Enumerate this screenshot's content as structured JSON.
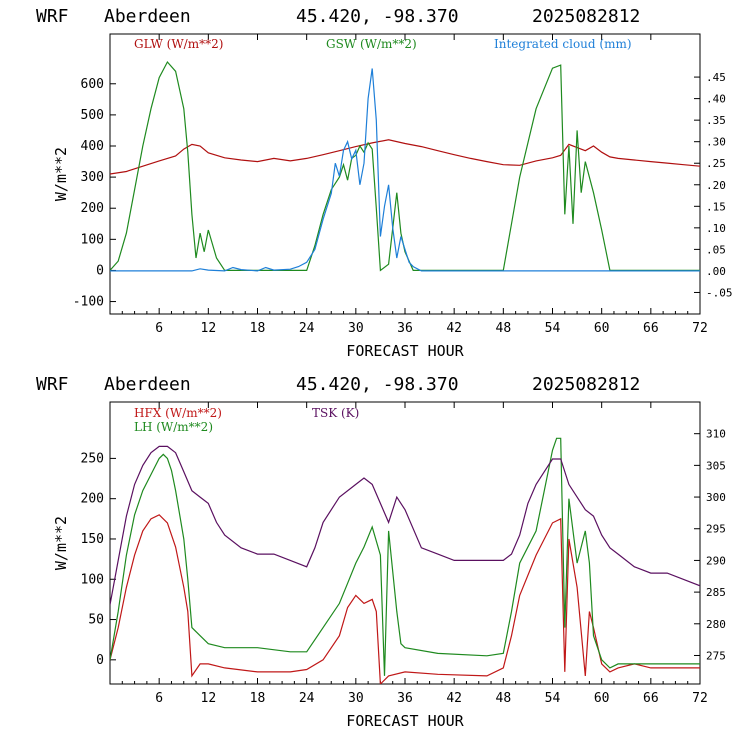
{
  "chart_data": [
    {
      "type": "line",
      "header": {
        "model": "WRF",
        "station": "Aberdeen",
        "coords": "45.420, -98.370",
        "run": "2025082812"
      },
      "xlabel": "FORECAST HOUR",
      "ylabel": "W/m**2",
      "xlim": [
        0,
        72
      ],
      "ylim": [
        -140,
        760
      ],
      "yticks": [
        -100,
        0,
        100,
        200,
        300,
        400,
        500,
        600
      ],
      "xticks": [
        6,
        12,
        18,
        24,
        30,
        36,
        42,
        48,
        54,
        60,
        66,
        72
      ],
      "y2lim": [
        -0.1,
        0.55
      ],
      "y2ticks": [
        -0.05,
        0.0,
        0.05,
        0.1,
        0.15,
        0.2,
        0.25,
        0.3,
        0.35,
        0.4,
        0.45
      ],
      "y2tick_labels": [
        "-.05",
        ".00",
        ".05",
        ".10",
        ".15",
        ".20",
        ".25",
        ".30",
        ".35",
        ".40",
        ".45"
      ],
      "colors": {
        "GLW": "#b01010",
        "GSW": "#1f8a1f",
        "cloud": "#1e7fd8"
      },
      "series": [
        {
          "name": "GLW (W/m**2)",
          "color": "#b01010",
          "axis": "left",
          "x": [
            0,
            2,
            4,
            6,
            8,
            9,
            10,
            11,
            12,
            14,
            16,
            18,
            20,
            22,
            24,
            26,
            28,
            30,
            32,
            34,
            36,
            38,
            40,
            42,
            44,
            46,
            48,
            50,
            52,
            54,
            55,
            56,
            57,
            58,
            59,
            60,
            61,
            62,
            64,
            66,
            68,
            70,
            72
          ],
          "y": [
            310,
            318,
            335,
            352,
            368,
            390,
            405,
            400,
            378,
            362,
            355,
            350,
            360,
            352,
            360,
            372,
            385,
            398,
            410,
            420,
            408,
            398,
            385,
            372,
            360,
            350,
            340,
            338,
            352,
            362,
            370,
            405,
            395,
            385,
            400,
            380,
            365,
            360,
            355,
            350,
            345,
            340,
            335
          ]
        },
        {
          "name": "GSW (W/m**2)",
          "color": "#1f8a1f",
          "axis": "left",
          "x": [
            0,
            1,
            2,
            3,
            4,
            5,
            6,
            7,
            8,
            9,
            9.5,
            10,
            10.5,
            11,
            11.5,
            12,
            13,
            14,
            20,
            23,
            24,
            25,
            26,
            27,
            28,
            28.5,
            29,
            29.5,
            30,
            30.5,
            31,
            31.5,
            32,
            32.5,
            33,
            34,
            35,
            35.5,
            36,
            37,
            48,
            49,
            50,
            52,
            54,
            55,
            55.5,
            56,
            56.5,
            57,
            57.5,
            58,
            59,
            60,
            61,
            72
          ],
          "y": [
            0,
            30,
            120,
            260,
            400,
            520,
            620,
            670,
            640,
            520,
            380,
            180,
            40,
            120,
            60,
            130,
            40,
            0,
            0,
            0,
            0,
            80,
            180,
            260,
            300,
            340,
            290,
            360,
            370,
            400,
            380,
            410,
            390,
            200,
            0,
            20,
            250,
            120,
            60,
            0,
            0,
            150,
            300,
            520,
            650,
            660,
            180,
            400,
            150,
            450,
            250,
            350,
            250,
            130,
            0,
            0
          ]
        },
        {
          "name": "Integrated cloud (mm)",
          "color": "#1e7fd8",
          "axis": "right",
          "x": [
            0,
            10,
            11,
            12,
            14,
            15,
            16,
            18,
            19,
            20,
            22,
            23,
            24,
            25,
            26,
            27,
            27.5,
            28,
            28.5,
            29,
            29.5,
            30,
            30.5,
            31,
            31.5,
            32,
            32.5,
            33,
            33.5,
            34,
            34.5,
            35,
            35.5,
            36,
            36.5,
            37,
            38,
            72
          ],
          "y": [
            0,
            0,
            0.005,
            0.002,
            0,
            0.008,
            0.003,
            0,
            0.008,
            0.002,
            0.004,
            0.01,
            0.02,
            0.05,
            0.12,
            0.18,
            0.25,
            0.22,
            0.28,
            0.3,
            0.26,
            0.28,
            0.2,
            0.25,
            0.4,
            0.47,
            0.35,
            0.08,
            0.15,
            0.2,
            0.1,
            0.03,
            0.08,
            0.05,
            0.02,
            0.01,
            0,
            0
          ]
        }
      ]
    },
    {
      "type": "line",
      "header": {
        "model": "WRF",
        "station": "Aberdeen",
        "coords": "45.420, -98.370",
        "run": "2025082812"
      },
      "xlabel": "FORECAST HOUR",
      "ylabel": "W/m**2",
      "xlim": [
        0,
        72
      ],
      "ylim": [
        -30,
        320
      ],
      "yticks": [
        0,
        50,
        100,
        150,
        200,
        250
      ],
      "xticks": [
        6,
        12,
        18,
        24,
        30,
        36,
        42,
        48,
        54,
        60,
        66,
        72
      ],
      "y2lim": [
        270.5,
        315
      ],
      "y2ticks": [
        275,
        280,
        285,
        290,
        295,
        300,
        305,
        310
      ],
      "colors": {
        "HFX": "#c01818",
        "LH": "#1f8a1f",
        "TSK": "#5a1060"
      },
      "series": [
        {
          "name": "HFX (W/m**2)",
          "color": "#c01818",
          "axis": "left",
          "x": [
            0,
            1,
            2,
            3,
            4,
            5,
            6,
            7,
            8,
            9,
            9.5,
            10,
            11,
            12,
            14,
            18,
            22,
            24,
            26,
            28,
            29,
            30,
            31,
            32,
            32.5,
            33,
            34,
            36,
            40,
            46,
            48,
            49,
            50,
            52,
            54,
            55,
            55.5,
            56,
            57,
            58,
            58.5,
            59,
            60,
            61,
            62,
            64,
            66,
            72
          ],
          "y": [
            0,
            40,
            90,
            130,
            160,
            175,
            180,
            170,
            140,
            90,
            60,
            -20,
            -5,
            -5,
            -10,
            -15,
            -15,
            -12,
            0,
            30,
            65,
            80,
            70,
            75,
            60,
            -30,
            -20,
            -15,
            -18,
            -20,
            -10,
            30,
            80,
            130,
            170,
            175,
            -15,
            150,
            90,
            -20,
            60,
            40,
            -5,
            -15,
            -10,
            -5,
            -10,
            -10
          ]
        },
        {
          "name": "LH  (W/m**2)",
          "color": "#1f8a1f",
          "axis": "left",
          "x": [
            0,
            1,
            2,
            3,
            4,
            5,
            6,
            6.5,
            7,
            7.5,
            8,
            8.5,
            9,
            9.5,
            10,
            11,
            12,
            14,
            18,
            22,
            24,
            26,
            28,
            29,
            30,
            31,
            32,
            33,
            33.5,
            34,
            35,
            35.5,
            36,
            40,
            46,
            48,
            49,
            50,
            52,
            53,
            54,
            54.5,
            55,
            55.5,
            56,
            57,
            58,
            58.5,
            59,
            60,
            61,
            62,
            66,
            72
          ],
          "y": [
            0,
            60,
            130,
            180,
            210,
            230,
            250,
            255,
            250,
            235,
            210,
            180,
            150,
            100,
            40,
            30,
            20,
            15,
            15,
            10,
            10,
            40,
            70,
            95,
            120,
            140,
            165,
            130,
            -20,
            160,
            60,
            20,
            15,
            8,
            5,
            8,
            60,
            120,
            160,
            210,
            260,
            275,
            275,
            40,
            200,
            120,
            160,
            120,
            30,
            0,
            -10,
            -5,
            -5,
            -5
          ]
        },
        {
          "name": "TSK (K)",
          "color": "#5a1060",
          "axis": "right",
          "x": [
            0,
            1,
            2,
            3,
            4,
            5,
            6,
            7,
            8,
            9,
            10,
            11,
            12,
            13,
            14,
            16,
            18,
            20,
            22,
            24,
            25,
            26,
            28,
            30,
            31,
            32,
            33,
            34,
            35,
            36,
            38,
            40,
            42,
            44,
            46,
            48,
            49,
            50,
            51,
            52,
            53,
            54,
            55,
            56,
            57,
            58,
            59,
            60,
            61,
            62,
            64,
            66,
            68,
            70,
            72
          ],
          "y": [
            283,
            290,
            297,
            302,
            305,
            307,
            308,
            308,
            307,
            304,
            301,
            300,
            299,
            296,
            294,
            292,
            291,
            291,
            290,
            289,
            292,
            296,
            300,
            302,
            303,
            302,
            299,
            296,
            300,
            298,
            292,
            291,
            290,
            290,
            290,
            290,
            291,
            294,
            299,
            302,
            304,
            306,
            306,
            302,
            300,
            298,
            297,
            294,
            292,
            291,
            289,
            288,
            288,
            287,
            286
          ]
        }
      ]
    }
  ]
}
